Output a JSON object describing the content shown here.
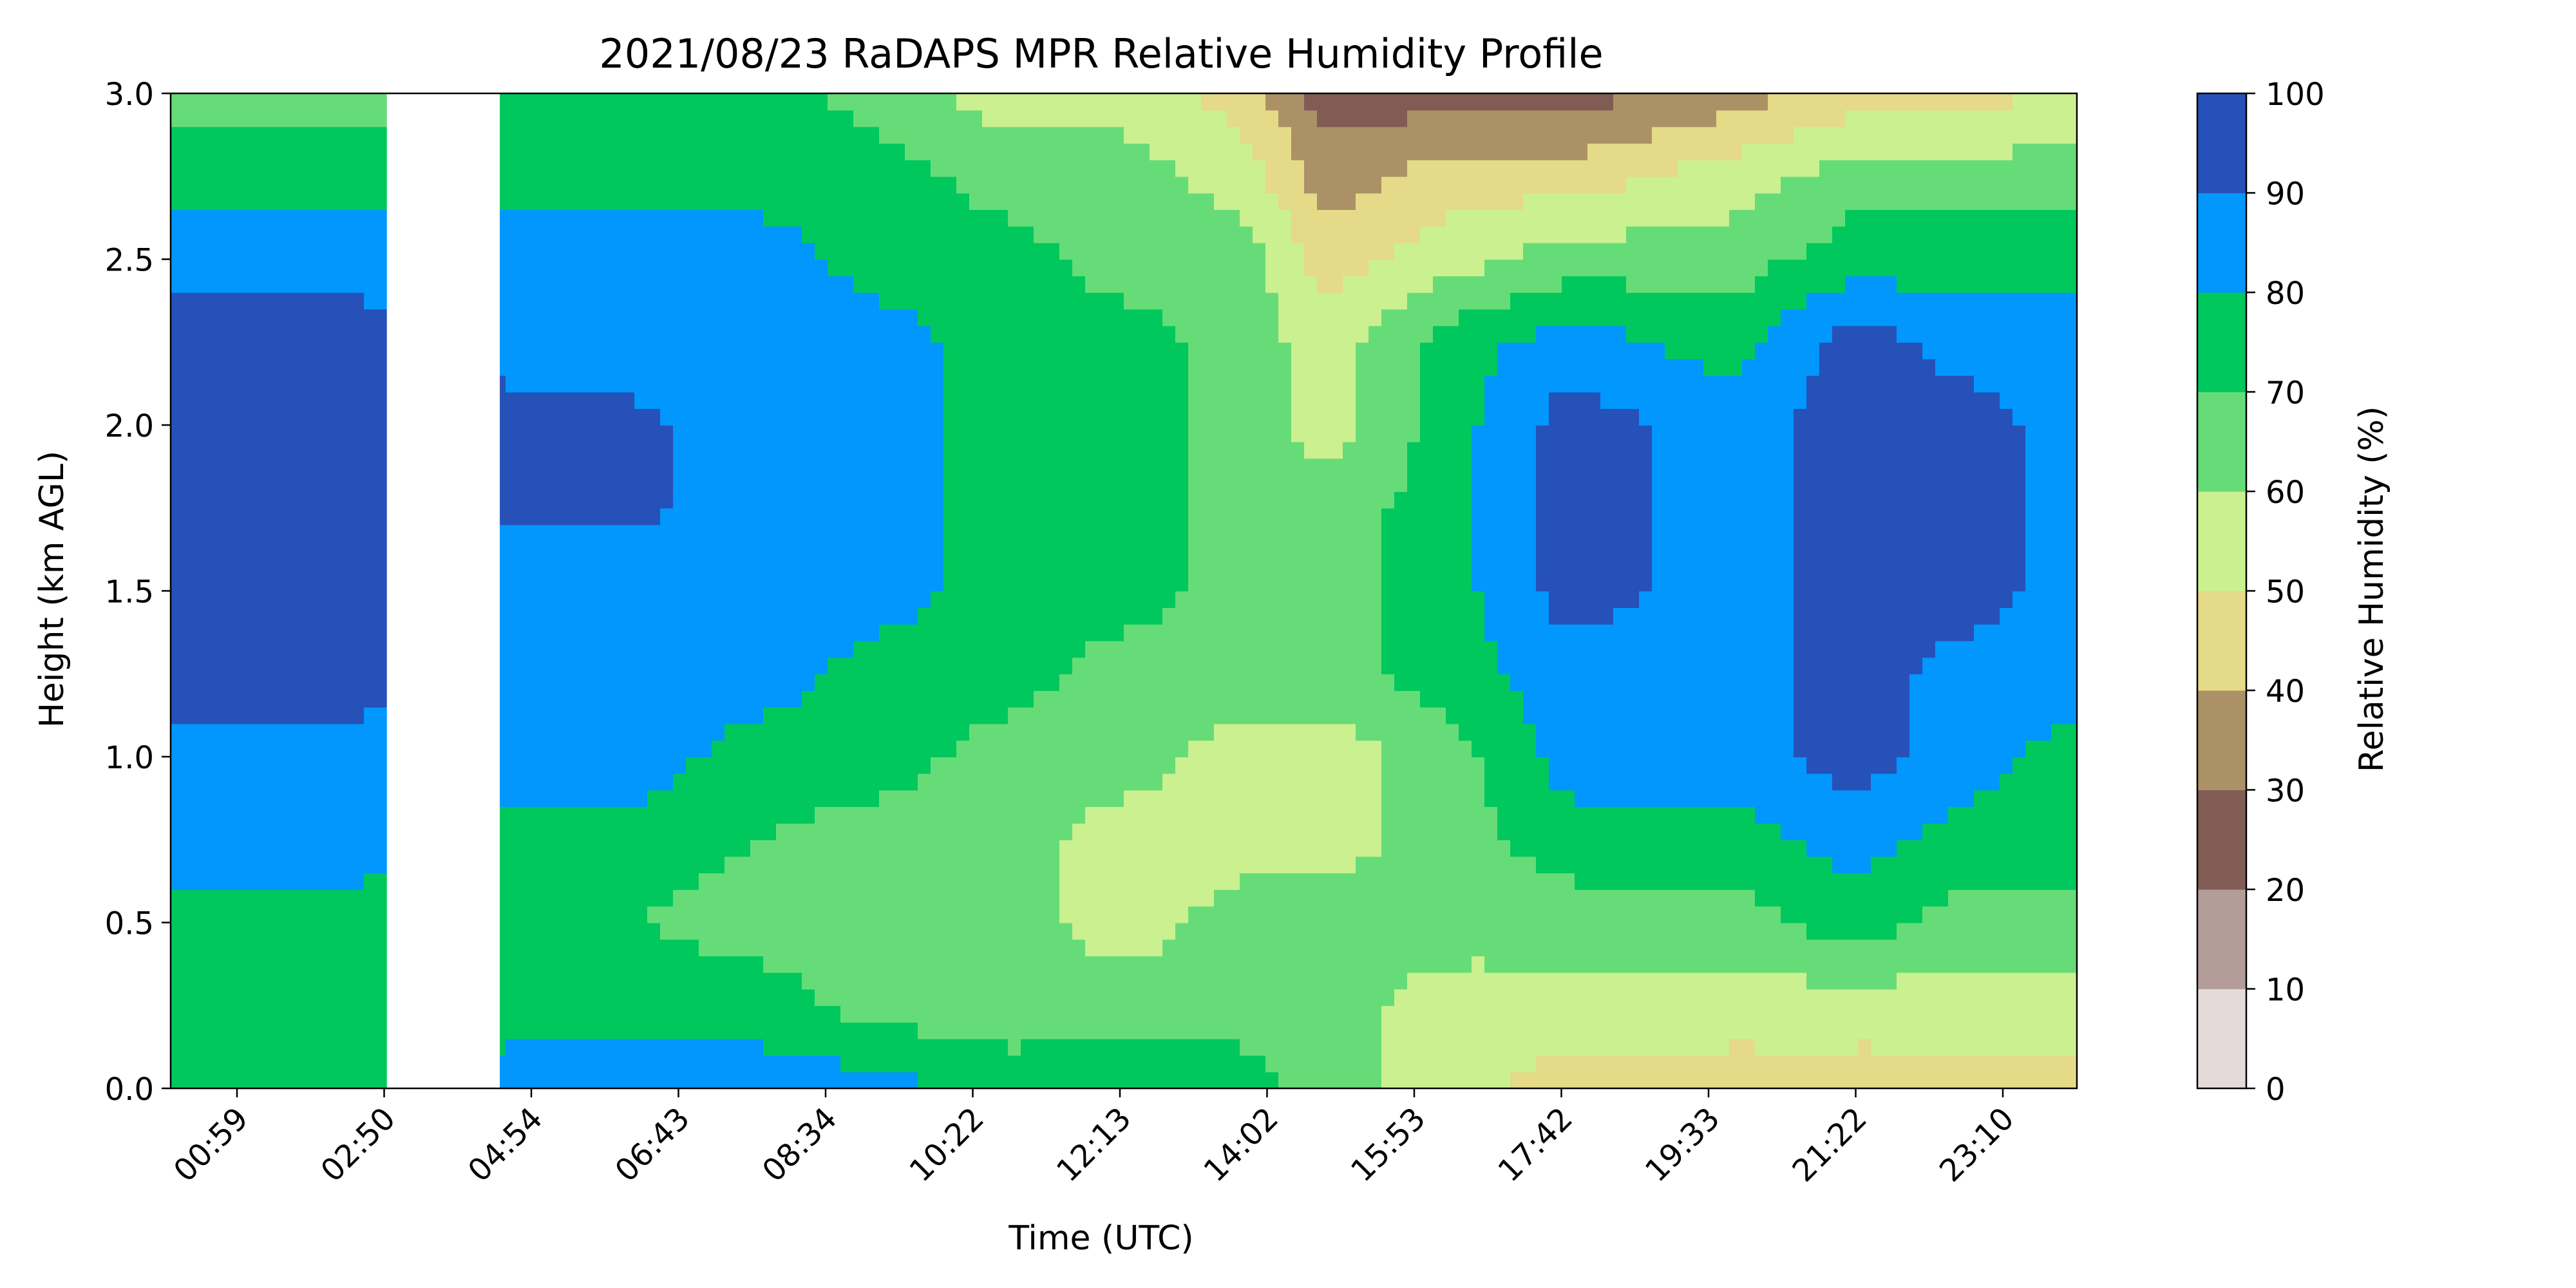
{
  "chart_data": {
    "type": "heatmap",
    "title": "2021/08/23 RaDAPS MPR Relative Humidity Profile",
    "xlabel": "Time (UTC)",
    "ylabel": "Height (km AGL)",
    "x_tick_labels": [
      "00:59",
      "02:50",
      "04:54",
      "06:43",
      "08:34",
      "10:22",
      "12:13",
      "14:02",
      "15:53",
      "17:42",
      "19:33",
      "21:22",
      "23:10"
    ],
    "xlim_hours": [
      0.17,
      23.8
    ],
    "ylim": [
      0,
      3
    ],
    "y_ticks": [
      0.0,
      0.5,
      1.0,
      1.5,
      2.0,
      2.5,
      3.0
    ],
    "colorbar": {
      "label": "Relative Humidity (%)",
      "levels": [
        0,
        10,
        20,
        30,
        40,
        50,
        60,
        70,
        80,
        90,
        100
      ],
      "colors": [
        "#e3dad9",
        "#b49d98",
        "#805c55",
        "#ac9166",
        "#e4da88",
        "#cbf08f",
        "#66dc78",
        "#00c85d",
        "#0197fd",
        "#2651b8"
      ]
    },
    "grid": false,
    "missing_data_hours": [
      [
        2.85,
        4.25
      ]
    ],
    "profiles": {
      "heights_km": [
        0.0,
        0.25,
        0.5,
        0.75,
        1.0,
        1.25,
        1.5,
        1.75,
        2.0,
        2.25,
        2.5,
        2.75,
        3.0
      ],
      "rows": [
        {
          "t": 0.2,
          "rh": [
            75,
            75,
            75,
            85,
            85,
            95,
            95,
            92,
            92,
            95,
            85,
            75,
            65
          ]
        },
        {
          "t": 1.4,
          "rh": [
            75,
            75,
            75,
            85,
            85,
            95,
            92,
            92,
            92,
            95,
            85,
            75,
            65
          ]
        },
        {
          "t": 2.6,
          "rh": [
            75,
            75,
            75,
            85,
            85,
            95,
            92,
            92,
            92,
            95,
            85,
            75,
            65
          ]
        },
        {
          "t": 4.3,
          "rh": [
            85,
            75,
            75,
            75,
            85,
            85,
            85,
            92,
            95,
            85,
            85,
            75,
            75
          ]
        },
        {
          "t": 6.0,
          "rh": [
            85,
            75,
            70,
            75,
            85,
            85,
            85,
            92,
            92,
            85,
            85,
            75,
            75
          ]
        },
        {
          "t": 7.5,
          "rh": [
            85,
            75,
            65,
            70,
            75,
            85,
            85,
            85,
            85,
            85,
            85,
            75,
            75
          ]
        },
        {
          "t": 9.0,
          "rh": [
            85,
            65,
            65,
            65,
            75,
            75,
            85,
            85,
            85,
            85,
            75,
            75,
            65
          ]
        },
        {
          "t": 10.5,
          "rh": [
            75,
            65,
            65,
            65,
            65,
            75,
            75,
            75,
            75,
            75,
            75,
            65,
            55
          ]
        },
        {
          "t": 12.0,
          "rh": [
            75,
            65,
            55,
            55,
            65,
            65,
            75,
            75,
            75,
            75,
            65,
            65,
            55
          ]
        },
        {
          "t": 13.5,
          "rh": [
            75,
            65,
            65,
            55,
            55,
            65,
            65,
            65,
            65,
            65,
            65,
            55,
            45
          ]
        },
        {
          "t": 14.5,
          "rh": [
            65,
            65,
            65,
            55,
            55,
            65,
            65,
            65,
            55,
            55,
            45,
            35,
            25
          ]
        },
        {
          "t": 16.0,
          "rh": [
            55,
            55,
            65,
            65,
            65,
            75,
            75,
            75,
            75,
            75,
            55,
            45,
            25
          ]
        },
        {
          "t": 17.5,
          "rh": [
            45,
            55,
            65,
            75,
            85,
            85,
            95,
            95,
            95,
            85,
            65,
            45,
            25
          ]
        },
        {
          "t": 19.5,
          "rh": [
            45,
            55,
            65,
            75,
            85,
            85,
            85,
            85,
            85,
            75,
            65,
            55,
            35
          ]
        },
        {
          "t": 21.0,
          "rh": [
            45,
            55,
            75,
            85,
            95,
            95,
            95,
            95,
            95,
            95,
            75,
            65,
            45
          ]
        },
        {
          "t": 22.5,
          "rh": [
            45,
            55,
            65,
            75,
            85,
            85,
            95,
            95,
            95,
            85,
            75,
            65,
            45
          ]
        },
        {
          "t": 23.8,
          "rh": [
            45,
            55,
            65,
            75,
            75,
            85,
            85,
            85,
            85,
            85,
            75,
            65,
            55
          ]
        }
      ]
    }
  }
}
